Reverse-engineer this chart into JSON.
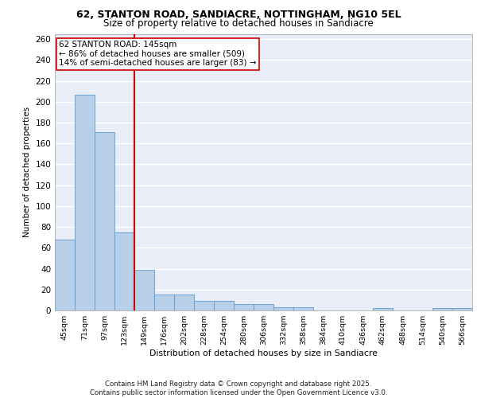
{
  "title1": "62, STANTON ROAD, SANDIACRE, NOTTINGHAM, NG10 5EL",
  "title2": "Size of property relative to detached houses in Sandiacre",
  "xlabel": "Distribution of detached houses by size in Sandiacre",
  "ylabel": "Number of detached properties",
  "categories": [
    "45sqm",
    "71sqm",
    "97sqm",
    "123sqm",
    "149sqm",
    "176sqm",
    "202sqm",
    "228sqm",
    "254sqm",
    "280sqm",
    "306sqm",
    "332sqm",
    "358sqm",
    "384sqm",
    "410sqm",
    "436sqm",
    "462sqm",
    "488sqm",
    "514sqm",
    "540sqm",
    "566sqm"
  ],
  "values": [
    68,
    207,
    171,
    75,
    39,
    15,
    15,
    9,
    9,
    6,
    6,
    3,
    3,
    0,
    0,
    0,
    2,
    0,
    0,
    2,
    2
  ],
  "bar_color": "#b8cfe8",
  "bar_edge_color": "#5b9bd5",
  "bar_width": 1.0,
  "vline_color": "#cc0000",
  "annotation_text": "62 STANTON ROAD: 145sqm\n← 86% of detached houses are smaller (509)\n14% of semi-detached houses are larger (83) →",
  "bg_color": "#e8edf8",
  "grid_color": "#ffffff",
  "ylim": [
    0,
    265
  ],
  "yticks": [
    0,
    20,
    40,
    60,
    80,
    100,
    120,
    140,
    160,
    180,
    200,
    220,
    240,
    260
  ],
  "footer": "Contains HM Land Registry data © Crown copyright and database right 2025.\nContains public sector information licensed under the Open Government Licence v3.0."
}
